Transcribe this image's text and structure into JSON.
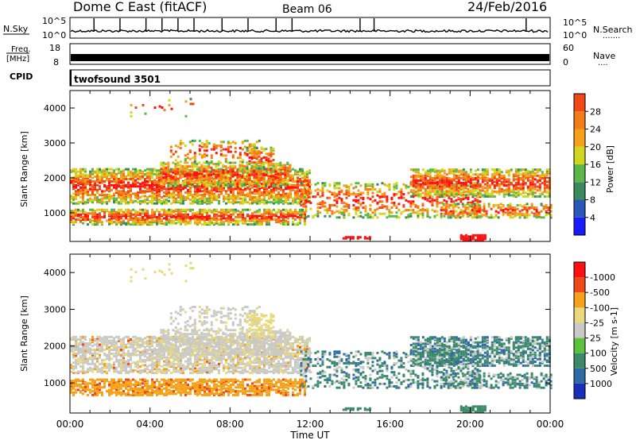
{
  "header": {
    "station": "Dome C East (fitACF)",
    "beam": "Beam 06",
    "date": "24/Feb/2016"
  },
  "side_labels": {
    "nsky": "N.Sky",
    "freq_1": "Freq.",
    "freq_2": "[MHz]",
    "cpid": "CPID",
    "nsearch": "N.Search",
    "nsearch_dots": ".......",
    "nave": "Nave",
    "nave_dots": "...."
  },
  "cpid_text": "twofsound 3501",
  "noise_axis": {
    "top": "10^5",
    "bottom": "10^0",
    "right_top": "10^5",
    "right_bottom": "10^0"
  },
  "freq_axis": {
    "ticks": [
      "18",
      "8"
    ],
    "right_ticks": [
      "60",
      "0"
    ]
  },
  "x_axis": {
    "label": "Time UT",
    "ticks": [
      "00:00",
      "04:00",
      "08:00",
      "12:00",
      "16:00",
      "20:00",
      "00:00"
    ]
  },
  "range_axis": {
    "label": "Slant Range [km]",
    "ticks": [
      "1000",
      "2000",
      "3000",
      "4000"
    ]
  },
  "colors": {
    "power": [
      "#1a1aff",
      "#2b57b8",
      "#3a8a5e",
      "#5cb84a",
      "#d0d81e",
      "#f5a21a",
      "#f47c16",
      "#f04818",
      "#ff1010"
    ],
    "velocity": [
      "#ff1010",
      "#f04818",
      "#f5a21a",
      "#e7d97c",
      "#c9c9c6",
      "#5cc23c",
      "#3d8a6a",
      "#2f6aa8",
      "#1a2fb8"
    ]
  },
  "chart_data": [
    {
      "type": "heatmap",
      "title": "Power",
      "ylabel": "Slant Range [km]",
      "xlabel": "Time UT",
      "colorbar_label": "Power [dB]",
      "colorbar_ticks": [
        "4",
        "8",
        "12",
        "16",
        "20",
        "24",
        "28"
      ],
      "xlim": [
        0,
        24
      ],
      "ylim": [
        180,
        4500
      ]
    },
    {
      "type": "heatmap",
      "title": "Velocity",
      "ylabel": "Slant Range [km]",
      "xlabel": "Time UT",
      "colorbar_label": "Velocity [m s-1]",
      "colorbar_ticks": [
        "-1000",
        "-500",
        "-100",
        "-25",
        "25",
        "100",
        "500",
        "1000"
      ],
      "xlim": [
        0,
        24
      ],
      "ylim": [
        180,
        4500
      ]
    }
  ]
}
